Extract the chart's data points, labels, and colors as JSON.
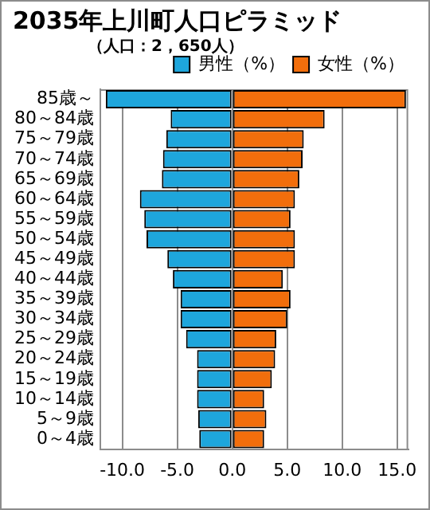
{
  "chart_data": {
    "type": "bar",
    "orientation": "horizontal",
    "stacked": true,
    "title": "2035年上川町人口ピラミッド",
    "subtitle": "（人口：2，650人）",
    "categories": [
      "85歳～",
      "80～84歳",
      "75～79歳",
      "70～74歳",
      "65～69歳",
      "60～64歳",
      "55～59歳",
      "50～54歳",
      "45～49歳",
      "40～44歳",
      "35～39歳",
      "30～34歳",
      "25～29歳",
      "20～24歳",
      "15～19歳",
      "10～14歳",
      "5～9歳",
      "0～4歳"
    ],
    "series": [
      {
        "name": "男性（%）",
        "color": "#1ea6dc",
        "values": [
          -11.5,
          -5.6,
          -6.0,
          -6.3,
          -6.4,
          -8.4,
          -8.0,
          -7.8,
          -5.9,
          -5.4,
          -4.7,
          -4.7,
          -4.2,
          -3.2,
          -3.2,
          -3.2,
          -3.1,
          -3.0
        ]
      },
      {
        "name": "女性（%）",
        "color": "#f26e0c",
        "values": [
          15.8,
          8.4,
          6.5,
          6.4,
          6.1,
          5.7,
          5.3,
          5.7,
          5.7,
          4.6,
          5.3,
          5.0,
          4.0,
          3.9,
          3.6,
          2.9,
          3.1,
          2.9
        ]
      }
    ],
    "xlim": [
      -12,
      16
    ],
    "xticks": [
      {
        "value": -10,
        "label": "-10.0"
      },
      {
        "value": -5,
        "label": "-5.0"
      },
      {
        "value": 0,
        "label": "0.0"
      },
      {
        "value": 5,
        "label": "5.0"
      },
      {
        "value": 10,
        "label": "10.0"
      },
      {
        "value": 15,
        "label": "15.0"
      }
    ],
    "grid": "x",
    "legend": "top right"
  }
}
